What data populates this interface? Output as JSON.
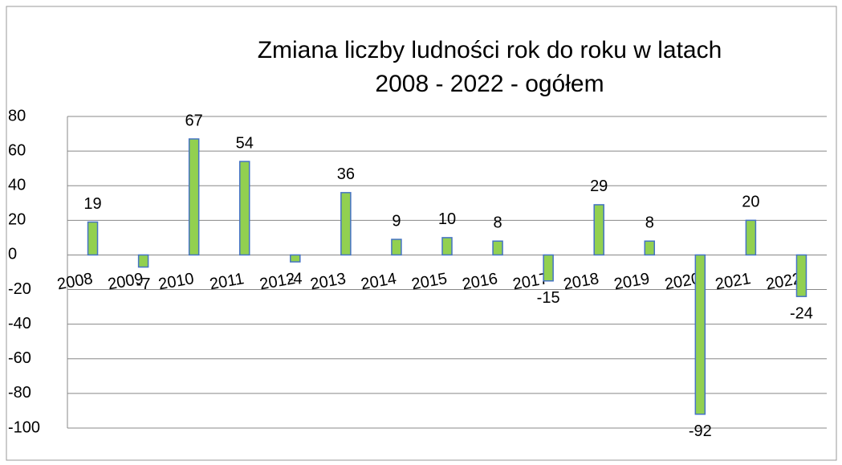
{
  "chart_data": {
    "type": "bar",
    "title": [
      "Zmiana  liczby ludności rok do roku w latach",
      "2008 - 2022 - ogółem"
    ],
    "categories": [
      "2008",
      "2009",
      "2010",
      "2011",
      "2012",
      "2013",
      "2014",
      "2015",
      "2016",
      "2017",
      "2018",
      "2019",
      "2020",
      "2021",
      "2022"
    ],
    "values": [
      19,
      -7,
      67,
      54,
      -4,
      36,
      9,
      10,
      8,
      -15,
      29,
      8,
      -92,
      20,
      -24
    ],
    "color": "#92d050",
    "edge_color": "#4472c4",
    "ylim": [
      -100,
      80
    ],
    "yticks": [
      -100,
      -80,
      -60,
      -40,
      -20,
      0,
      20,
      40,
      60,
      80
    ],
    "grid": true
  }
}
